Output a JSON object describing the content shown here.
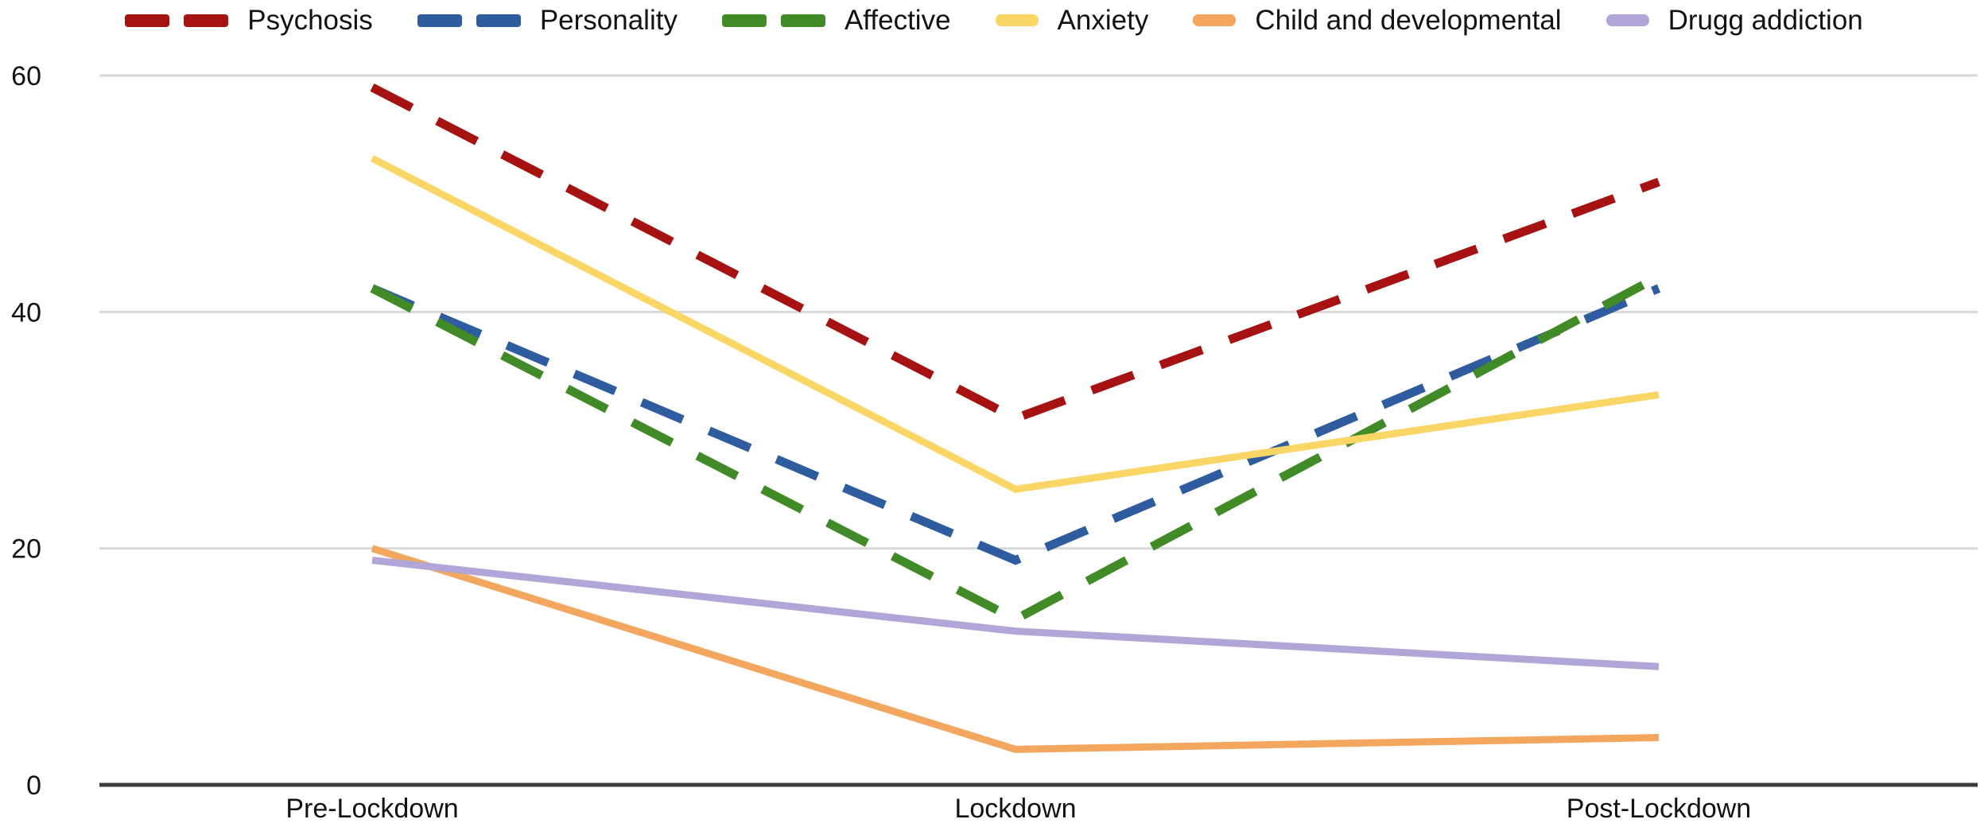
{
  "chart_data": {
    "type": "line",
    "title": "",
    "xlabel": "",
    "ylabel": "",
    "categories": [
      "Pre-Lockdown",
      "Lockdown",
      "Post-Lockdown"
    ],
    "series": [
      {
        "name": "Psychosis",
        "values": [
          59,
          31,
          51
        ],
        "color": "#A61111",
        "line_style": "dashed"
      },
      {
        "name": "Personality",
        "values": [
          42,
          19,
          42
        ],
        "color": "#2E5C9E",
        "line_style": "dashed"
      },
      {
        "name": "Affective",
        "values": [
          42,
          14,
          43
        ],
        "color": "#418A28",
        "line_style": "dashed"
      },
      {
        "name": "Anxiety",
        "values": [
          53,
          25,
          33
        ],
        "color": "#F9D665",
        "line_style": "solid"
      },
      {
        "name": "Child and developmental",
        "values": [
          20,
          3,
          4
        ],
        "color": "#F3A65E",
        "line_style": "solid"
      },
      {
        "name": "Drugg addiction",
        "values": [
          19,
          13,
          10
        ],
        "color": "#B1A6D7",
        "line_style": "solid"
      }
    ],
    "yticks": [
      0,
      20,
      40,
      60
    ],
    "ylim": [
      0,
      60
    ],
    "grid": true,
    "legend_position": "top"
  },
  "style_colors": {
    "gridline": "#D9D9D9",
    "axis_line": "#3D3D3D",
    "label_text": "#121212",
    "background": "#FFFFFF"
  }
}
